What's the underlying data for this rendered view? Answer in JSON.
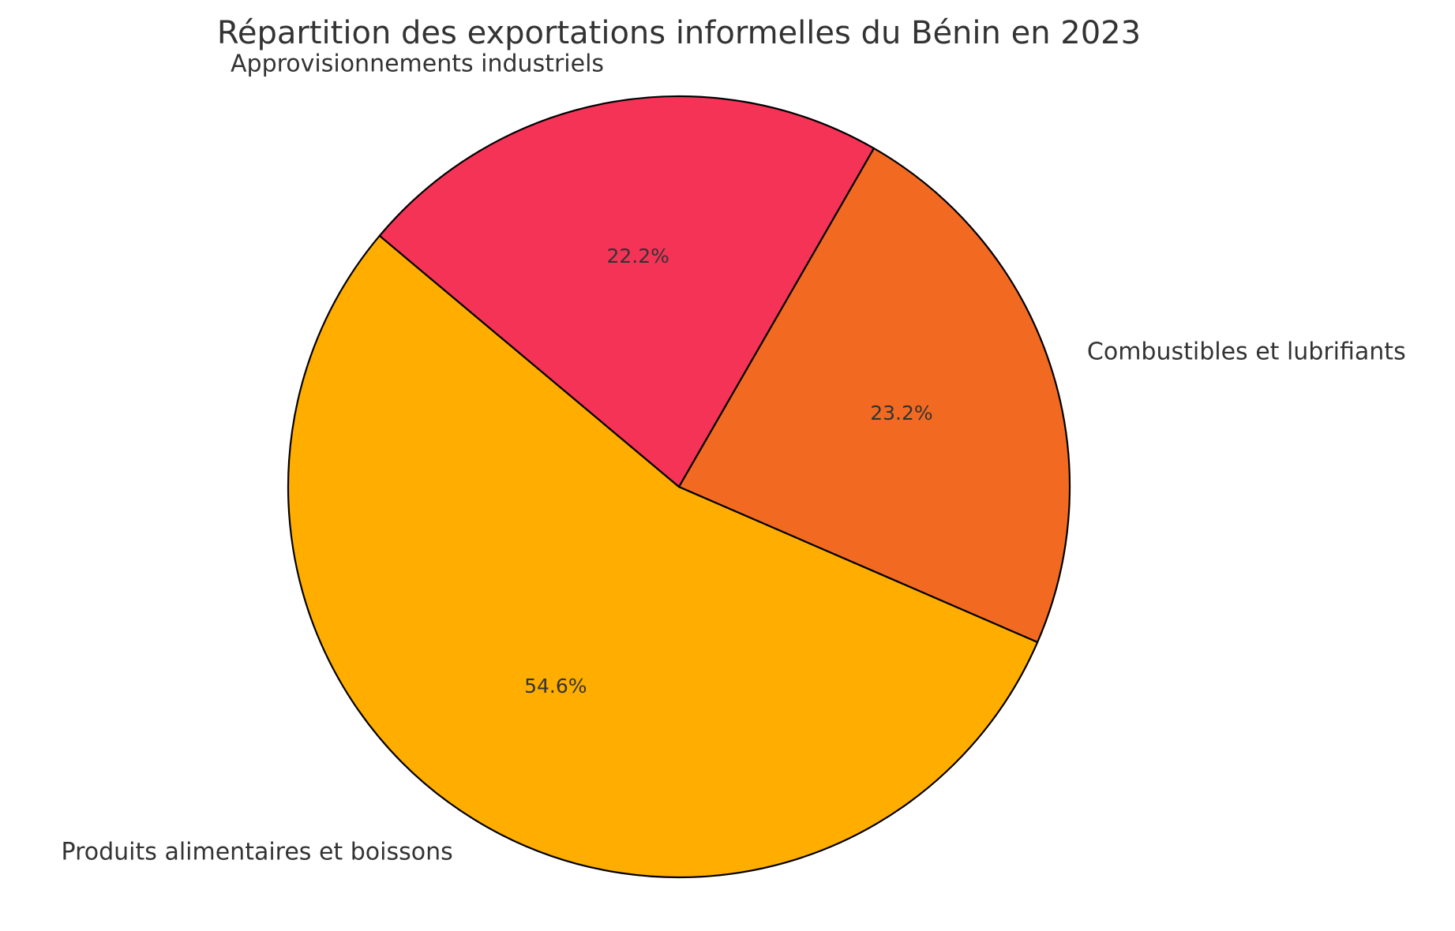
{
  "chart_data": {
    "type": "pie",
    "title": "Répartition des exportations informelles du Bénin en 2023",
    "slices": [
      {
        "label": "Produits alimentaires et boissons",
        "value": 54.6,
        "pct_label": "54.6%",
        "color": "#FFAE00"
      },
      {
        "label": "Combustibles et lubrifiants",
        "value": 23.2,
        "pct_label": "23.2%",
        "color": "#F26A22"
      },
      {
        "label": "Approvisionnements industriels",
        "value": 22.2,
        "pct_label": "22.2%",
        "color": "#F53357"
      }
    ],
    "edge_color": "#000000",
    "start_angle": 140,
    "legend": "none"
  }
}
